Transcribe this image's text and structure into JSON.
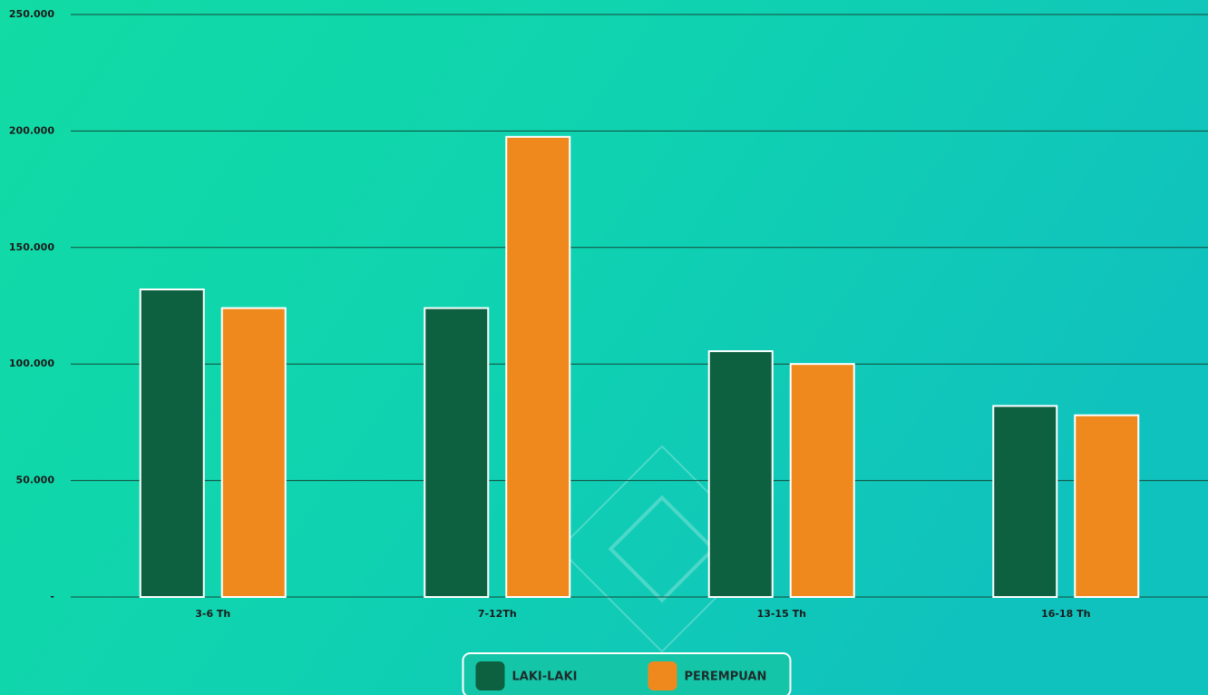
{
  "chart_data": {
    "type": "bar",
    "categories": [
      "3-6 Th",
      "7-12Th",
      "13-15 Th",
      "16-18 Th"
    ],
    "series": [
      {
        "name": "LAKI-LAKI",
        "color": "#0d6040",
        "values": [
          132000,
          124000,
          105500,
          82000
        ]
      },
      {
        "name": "PEREMPUAN",
        "color": "#f0891d",
        "values": [
          124000,
          197500,
          100000,
          78000
        ]
      }
    ],
    "ylim": [
      0,
      250000
    ],
    "yticks": [
      {
        "value": 0,
        "label": "-"
      },
      {
        "value": 50000,
        "label": "50.000"
      },
      {
        "value": 100000,
        "label": "100.000"
      },
      {
        "value": 150000,
        "label": "150.000"
      },
      {
        "value": 200000,
        "label": "200.000"
      },
      {
        "value": 250000,
        "label": "250.000"
      }
    ],
    "grid": true,
    "legend": "bottom"
  }
}
